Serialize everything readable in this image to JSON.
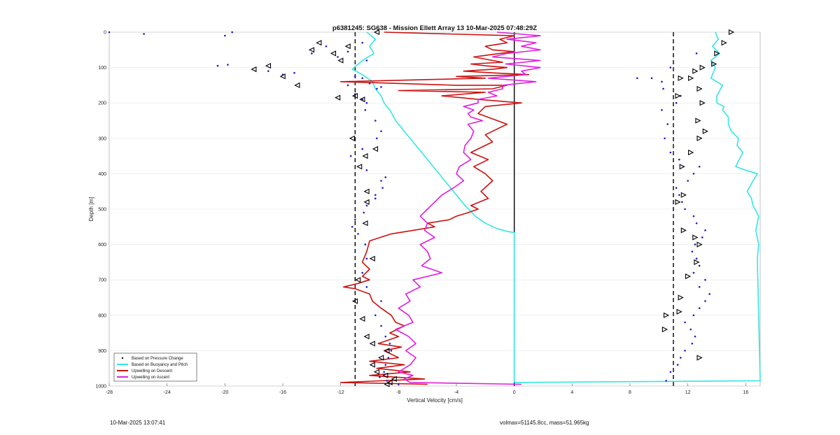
{
  "chart_data": {
    "type": "scatter",
    "title": "p6381245: SG638 - Mission Ellett Array 13 10-Mar-2025 07:48:29Z",
    "xlabel": "Vertical Velocity [cm/s]",
    "ylabel": "Depth [m]",
    "xlim": [
      -28,
      17
    ],
    "ylim": [
      0,
      1000
    ],
    "y_reversed": true,
    "grid": "horizontal",
    "legend_placement": "bottom-left",
    "xticks": [
      -28,
      -24,
      -20,
      -16,
      -12,
      -8,
      -4,
      0,
      4,
      8,
      12,
      16
    ],
    "yticks": [
      0,
      100,
      200,
      300,
      400,
      500,
      600,
      700,
      800,
      900,
      1000
    ],
    "reference_lines": [
      {
        "x": -11,
        "style": "dashed",
        "color": "#000000"
      },
      {
        "x": 0,
        "style": "solid",
        "color": "#000000"
      },
      {
        "x": 11,
        "style": "dashed",
        "color": "#000000"
      }
    ],
    "series": [
      {
        "name": "Based on Pressure Change",
        "mark": "dot",
        "color": "#1a1ac8",
        "descent": {
          "x": [
            -28,
            -25.6,
            -20,
            -19.5,
            -14,
            -13,
            -12.2,
            -11.5,
            -10.5,
            -10.2,
            -20.5,
            -19.8,
            -17,
            -16,
            -15.2,
            -11,
            -10.5,
            -11.5,
            -10,
            -9.5,
            -9.2,
            -11,
            -10.5,
            -10.2,
            -10.3,
            -9.6,
            -9.2,
            -9.5,
            -10.5,
            -11.3,
            -10.2,
            -9.2,
            -8.9,
            -9.1,
            -9.6,
            -9.6,
            -10.2,
            -10.4,
            -11,
            -11.2,
            -10.8,
            -10.3,
            -10.2,
            -10.5,
            -10.2,
            -9.2,
            -9.6,
            -9.2,
            -8.9,
            -8.6,
            -8.5,
            -8.7,
            -8.9,
            -9,
            -9.3,
            -8.8,
            -8
          ],
          "y": [
            0,
            5,
            10,
            0,
            60,
            40,
            70,
            55,
            30,
            80,
            95,
            92,
            110,
            120,
            115,
            125,
            130,
            150,
            145,
            160,
            155,
            175,
            190,
            200,
            220,
            250,
            280,
            300,
            330,
            350,
            390,
            420,
            410,
            440,
            460,
            470,
            490,
            510,
            530,
            550,
            570,
            600,
            640,
            680,
            720,
            760,
            800,
            830,
            860,
            880,
            900,
            920,
            940,
            960,
            975,
            985,
            995
          ]
        },
        "ascent": {
          "x": [
            10.5,
            10.8,
            11.3,
            11.5,
            11.8,
            12.3,
            12.5,
            12.2,
            11.8,
            12.4,
            12.8,
            13.2,
            13.5,
            12.8,
            13.2,
            12.4,
            12.8,
            12.6,
            12.3,
            12.5,
            13,
            13.2,
            12.6,
            12.4,
            11.8,
            11.6,
            11.4,
            11.2,
            12,
            12.4,
            12.8,
            11.4,
            10.8,
            10.4,
            10.6,
            10.2,
            11.2,
            11.5,
            10.3,
            10.2,
            9.5,
            8.5,
            10.8,
            12.6
          ],
          "y": [
            985,
            960,
            940,
            920,
            900,
            880,
            860,
            840,
            820,
            800,
            780,
            760,
            740,
            720,
            700,
            680,
            660,
            640,
            620,
            600,
            580,
            560,
            540,
            520,
            500,
            480,
            460,
            440,
            420,
            400,
            380,
            360,
            340,
            300,
            260,
            220,
            200,
            180,
            160,
            140,
            130,
            130,
            100,
            60
          ]
        }
      },
      {
        "name": "Based on Buoyancy and Pitch",
        "mark": "line",
        "color": "#33e6e6",
        "descent": {
          "x": [
            -10.2,
            -9.6,
            -10,
            -9.7,
            -10.5,
            -11.2,
            -10.5,
            -9.8,
            -9.6,
            -9.2,
            -9,
            -8.6,
            -8.2,
            -7.6,
            -7,
            -6.4,
            -5.8,
            -5.2,
            -4.6,
            -4,
            -3.4,
            -2.7,
            -2,
            -1.2,
            -0.5,
            0,
            0,
            0,
            0,
            0,
            0,
            0,
            0,
            0,
            0
          ],
          "y": [
            0,
            20,
            40,
            60,
            80,
            105,
            120,
            140,
            160,
            180,
            200,
            220,
            250,
            280,
            310,
            340,
            370,
            400,
            430,
            460,
            490,
            520,
            540,
            555,
            563,
            566,
            600,
            650,
            700,
            750,
            800,
            850,
            900,
            950,
            990
          ]
        },
        "ascent": {
          "x": [
            0,
            17,
            16.8,
            16.9,
            16.7,
            16.9,
            16.5,
            16.4,
            16.1,
            16.5,
            16.8,
            16,
            15.3,
            15.8,
            15.4,
            15.5,
            15,
            14.8,
            14.8,
            14.4,
            14.5,
            14,
            14,
            14.4,
            13.6,
            13.9,
            13.6,
            14.2,
            13.7,
            14.1,
            13.9
          ],
          "y": [
            990,
            985,
            640,
            600,
            560,
            520,
            490,
            470,
            450,
            420,
            400,
            390,
            380,
            340,
            320,
            300,
            280,
            260,
            240,
            220,
            210,
            200,
            180,
            150,
            130,
            100,
            80,
            60,
            40,
            20,
            0
          ]
        }
      },
      {
        "name": "Upwelling on Descent",
        "mark": "line",
        "color": "#cc1111",
        "x": [
          -9,
          0,
          -1,
          -0.5,
          -2,
          -1.5,
          0,
          -1,
          -2.8,
          -1.5,
          -0.8,
          -3,
          -2,
          -0.5,
          -1.5,
          -3.5,
          -1.5,
          1,
          -4,
          -2,
          -12,
          -4,
          -0.5,
          -1.5,
          -8,
          -2,
          -5,
          -2.5,
          0.5,
          -2,
          -2.5,
          -0.5,
          -2,
          -1.5,
          -3,
          -1.8,
          -2.8,
          -2,
          -1.5,
          -2.3,
          -1.8,
          -3,
          -2.5,
          -3.2,
          -4,
          -4.5,
          -6,
          -5.5,
          -7,
          -8.5,
          -10,
          -10.2,
          -10.5,
          -10,
          -10.5,
          -10,
          -10.4,
          -10.8,
          -11.8,
          -11,
          -10,
          -9.8,
          -9.2,
          -8.5,
          -8.2,
          -7.6,
          -8.6,
          -8,
          -9.4,
          -7.8,
          -9,
          -8,
          -10,
          -7.6,
          -9.5,
          -7.2,
          -10,
          -6.2,
          -12,
          -6
        ],
        "y": [
          0,
          10,
          20,
          30,
          40,
          50,
          55,
          60,
          70,
          80,
          85,
          90,
          95,
          100,
          105,
          110,
          115,
          120,
          125,
          130,
          140,
          150,
          150,
          160,
          165,
          170,
          180,
          190,
          200,
          210,
          230,
          260,
          290,
          310,
          340,
          360,
          380,
          400,
          420,
          450,
          470,
          490,
          500,
          510,
          520,
          530,
          540,
          550,
          560,
          570,
          590,
          620,
          650,
          670,
          690,
          700,
          705,
          710,
          720,
          725,
          740,
          760,
          780,
          800,
          820,
          830,
          850,
          860,
          880,
          890,
          900,
          920,
          930,
          940,
          950,
          960,
          970,
          980,
          990,
          995
        ]
      },
      {
        "name": "Upwelling on Ascent",
        "mark": "line",
        "color": "#e01ee0",
        "x": [
          -1.2,
          1.8,
          -0.5,
          1.5,
          0.5,
          1.8,
          -0.5,
          -1.5,
          1.8,
          -0.6,
          1.8,
          0.5,
          0.8,
          -1.8,
          1.5,
          -0.8,
          -0.8,
          -1.8,
          -1.2,
          -2.5,
          -2.5,
          -3.5,
          -2.8,
          -3.2,
          -3,
          -2.2,
          -3.2,
          -2.8,
          -3,
          -3.4,
          -3.5,
          -3,
          -3.8,
          -4,
          -3.5,
          -4.2,
          -5,
          -5.5,
          -6,
          -6.5,
          -6,
          -6.2,
          -5.5,
          -6.5,
          -6,
          -5.8,
          -6.4,
          -5,
          -7,
          -6.5,
          -7.5,
          -7.2,
          -8,
          -7.3,
          -7,
          -8.2,
          -7.3,
          -6.8,
          -7.5,
          -6.8,
          -7.2,
          -8,
          -7,
          -7.6,
          -7.2,
          0.5
        ],
        "y": [
          0,
          10,
          20,
          30,
          40,
          50,
          60,
          70,
          80,
          90,
          100,
          110,
          120,
          130,
          140,
          150,
          160,
          170,
          180,
          190,
          200,
          210,
          220,
          230,
          240,
          250,
          260,
          280,
          300,
          320,
          340,
          360,
          380,
          400,
          420,
          440,
          460,
          480,
          500,
          520,
          540,
          560,
          580,
          600,
          620,
          640,
          660,
          680,
          700,
          720,
          740,
          760,
          780,
          800,
          820,
          840,
          860,
          880,
          900,
          920,
          940,
          960,
          970,
          980,
          990,
          995
        ]
      }
    ],
    "triangle_markers": {
      "color": "#000000",
      "descent": {
        "x": [
          -9.5,
          -14,
          -13.5,
          -12.5,
          -12,
          -11.5,
          -18,
          -17,
          -16,
          -15,
          -12.2,
          -11,
          -10.5,
          -11.2,
          -10.3,
          -10.7,
          -9.6,
          -10.2,
          -10.2,
          -10.3,
          -9.8,
          -10.8,
          -11,
          -10.5,
          -10.2,
          -9.8,
          -8.8,
          -9.2,
          -9.8,
          -9.5,
          -8.9,
          -8.3,
          -8.6,
          -8.8
        ],
        "y": [
          0,
          50,
          30,
          60,
          80,
          40,
          105,
          95,
          125,
          150,
          185,
          180,
          190,
          300,
          350,
          380,
          330,
          450,
          480,
          540,
          640,
          700,
          760,
          810,
          860,
          880,
          900,
          920,
          940,
          960,
          970,
          980,
          990,
          995
        ]
      },
      "ascent": {
        "x": [
          15,
          14.5,
          14,
          13.8,
          13,
          12.5,
          12.2,
          11.5,
          11.3,
          12.8,
          13,
          12.7,
          13.2,
          12.8,
          12.2,
          11.6,
          11.7,
          11.3,
          11.7,
          12.5,
          12.8,
          12.6,
          12,
          11.5,
          11.4,
          10.5,
          10.4,
          12.8
        ],
        "y": [
          0,
          30,
          60,
          90,
          100,
          110,
          130,
          130,
          180,
          160,
          200,
          250,
          280,
          300,
          340,
          380,
          460,
          480,
          560,
          580,
          600,
          650,
          690,
          750,
          790,
          800,
          840,
          920
        ]
      }
    }
  },
  "footer": {
    "timestamp": "10-Mar-2025 13:07:41",
    "mass_info": "volmax=51145.8cc, mass=51.965kg"
  }
}
